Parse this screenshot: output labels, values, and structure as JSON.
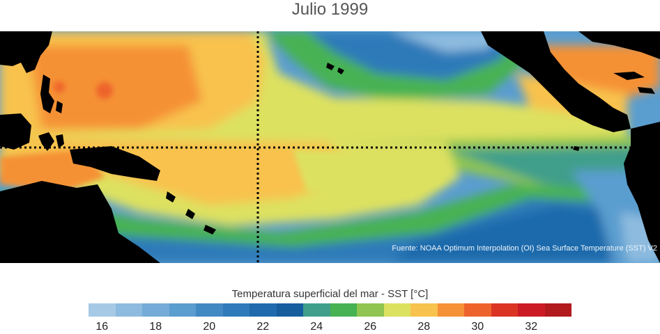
{
  "title": "Julio 1999",
  "source_text": "Fuente: NOAA Optimum Interpolation (OI) Sea Surface Temperature (SST) V2",
  "colorbar": {
    "label": "Temperatura superficial del mar - SST  [°C]",
    "colors": [
      "#a6cae6",
      "#8dbbdf",
      "#74acd7",
      "#5a9dcf",
      "#4189c3",
      "#2f7ab9",
      "#1f6aac",
      "#165d9e",
      "#3f9f8b",
      "#46b253",
      "#8fc550",
      "#dde160",
      "#f8c24e",
      "#f59136",
      "#ee632b",
      "#db3423",
      "#cc1b24",
      "#b21a1e"
    ],
    "ticks": [
      "16",
      "18",
      "20",
      "22",
      "24",
      "26",
      "28",
      "30",
      "32"
    ]
  },
  "legend": {
    "colors": {
      "land": "#000000",
      "guide_lines": "#000000"
    }
  }
}
